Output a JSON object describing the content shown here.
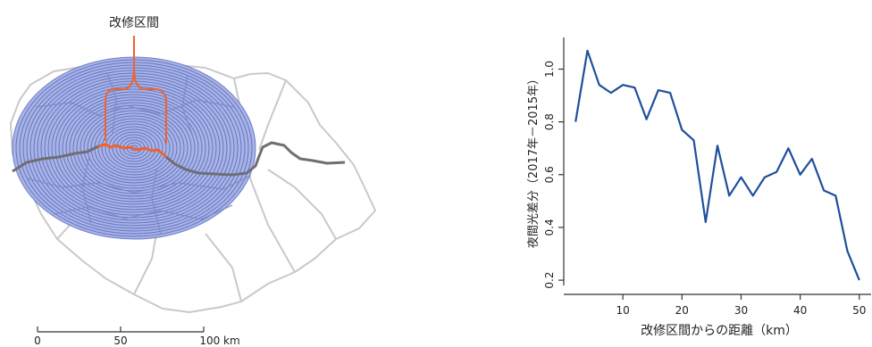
{
  "map": {
    "title": "改修区間",
    "scalebar": {
      "ticks": [
        "0",
        "50",
        "100 km"
      ]
    },
    "colors": {
      "rings": "#4a5fc1",
      "ring_fill": "#aab4e3",
      "segment": "#f0622d",
      "road": "#6e6e73",
      "outline": "#c9c9c9"
    }
  },
  "chart_data": {
    "type": "line",
    "title": "",
    "xlabel": "改修区間からの距離（km）",
    "ylabel": "夜間光差分（2017年－2015年）",
    "xlim": [
      0,
      52
    ],
    "ylim": [
      0.18,
      1.12
    ],
    "xticks": [
      10,
      20,
      30,
      40,
      50
    ],
    "yticks": [
      0.2,
      0.4,
      0.6,
      0.8,
      1.0
    ],
    "ytick_labels": [
      "0.2",
      "0.4",
      "0.6",
      "0.8",
      "1.0"
    ],
    "xtick_labels": [
      "10",
      "20",
      "30",
      "40",
      "50"
    ],
    "color": "#1f4f9c",
    "series": [
      {
        "x": [
          2,
          4,
          6,
          8,
          10,
          12,
          14,
          16,
          18,
          20,
          22,
          24,
          26,
          28,
          30,
          32,
          34,
          36,
          38,
          40,
          42,
          44,
          46,
          48,
          50
        ],
        "y": [
          0.8,
          1.07,
          0.94,
          0.91,
          0.94,
          0.93,
          0.81,
          0.92,
          0.91,
          0.77,
          0.73,
          0.42,
          0.71,
          0.52,
          0.59,
          0.52,
          0.59,
          0.61,
          0.7,
          0.6,
          0.66,
          0.54,
          0.52,
          0.31,
          0.2
        ]
      }
    ]
  }
}
